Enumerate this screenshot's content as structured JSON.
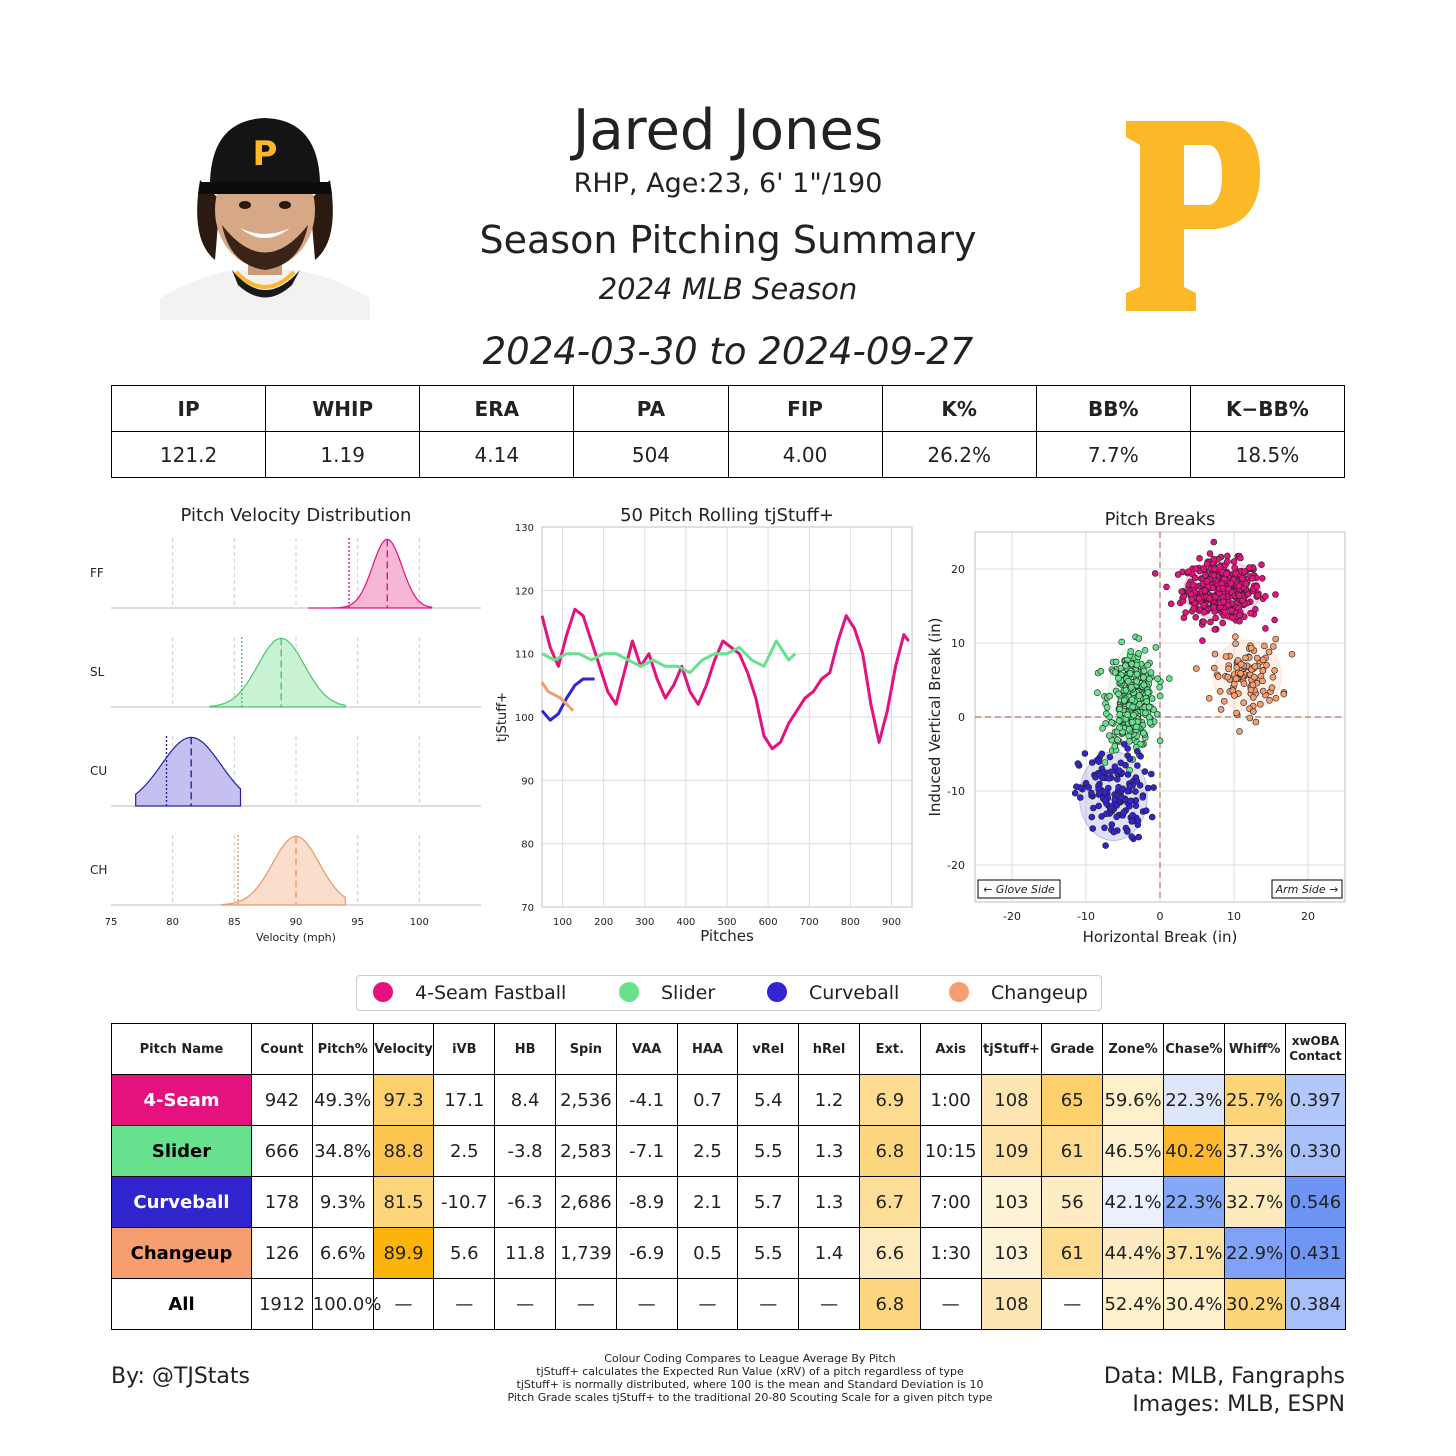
{
  "header": {
    "name": "Jared Jones",
    "info": "RHP, Age:23, 6' 1\"/190",
    "title": "Season Pitching Summary",
    "season": "2024 MLB Season",
    "date_range": "2024-03-30 to 2024-09-27",
    "team_color": "#FDB827"
  },
  "summary": {
    "headers": [
      "IP",
      "WHIP",
      "ERA",
      "PA",
      "FIP",
      "K%",
      "BB%",
      "K−BB%"
    ],
    "values": [
      "121.2",
      "1.19",
      "4.14",
      "504",
      "4.00",
      "26.2%",
      "7.7%",
      "18.5%"
    ]
  },
  "legend": [
    {
      "label": "4-Seam Fastball",
      "color": "#E4117F"
    },
    {
      "label": "Slider",
      "color": "#67E18D"
    },
    {
      "label": "Curveball",
      "color": "#3025CE"
    },
    {
      "label": "Changeup",
      "color": "#F79E70"
    }
  ],
  "chart_data": [
    {
      "type": "area",
      "title": "Pitch Velocity Distribution",
      "xlabel": "Velocity (mph)",
      "xlim": [
        75,
        105
      ],
      "xticks": [
        "75",
        "80",
        "85",
        "90",
        "95",
        "100"
      ],
      "series": [
        {
          "name": "FF",
          "color": "#E4117F",
          "fill": "#F7B6D6",
          "mean": 97.4,
          "league_mean": 94.3,
          "sd": 1.2,
          "min": 91,
          "max": 101,
          "y": [
            0,
            0.05,
            0.25,
            0.8,
            1.0,
            0.72,
            0.2,
            0
          ]
        },
        {
          "name": "SL",
          "color": "#4CC46F",
          "fill": "#C9F2D5",
          "mean": 88.8,
          "league_mean": 85.6,
          "sd": 1.9,
          "min": 83,
          "max": 94
        },
        {
          "name": "CU",
          "color": "#2420A8",
          "fill": "#C5C0F0",
          "mean": 81.5,
          "league_mean": 79.5,
          "sd": 2.4,
          "min": 77,
          "max": 85.5,
          "truncate": true
        },
        {
          "name": "CH",
          "color": "#E8986A",
          "fill": "#FADDCB",
          "mean": 90.0,
          "league_mean": 85.3,
          "sd": 1.9,
          "min": 84,
          "max": 94
        }
      ]
    },
    {
      "type": "line",
      "title": "50 Pitch Rolling tjStuff+",
      "xlabel": "Pitches",
      "ylabel": "tjStuff+",
      "xlim": [
        50,
        950
      ],
      "ylim": [
        70,
        130
      ],
      "xticks": [
        "100",
        "200",
        "300",
        "400",
        "500",
        "600",
        "700",
        "800",
        "900"
      ],
      "yticks": [
        "70",
        "80",
        "90",
        "100",
        "110",
        "120",
        "130"
      ],
      "series": [
        {
          "name": "4-Seam Fastball",
          "color": "#E4117F",
          "x": [
            50,
            70,
            90,
            110,
            130,
            150,
            170,
            190,
            210,
            230,
            250,
            270,
            290,
            310,
            330,
            350,
            370,
            390,
            410,
            430,
            450,
            470,
            490,
            510,
            530,
            550,
            570,
            590,
            610,
            630,
            650,
            670,
            690,
            710,
            730,
            750,
            770,
            790,
            810,
            830,
            850,
            870,
            890,
            910,
            930,
            942
          ],
          "y": [
            116,
            111,
            108,
            113,
            117,
            116,
            112,
            108,
            104,
            102,
            107,
            112,
            108,
            110,
            106,
            103,
            105,
            108,
            104,
            102,
            105,
            109,
            112,
            111,
            110,
            107,
            103,
            97,
            95,
            96,
            99,
            101,
            103,
            104,
            106,
            107,
            112,
            116,
            114,
            110,
            102,
            96,
            101,
            108,
            113,
            112
          ]
        },
        {
          "name": "Slider",
          "color": "#67E18D",
          "x": [
            50,
            80,
            110,
            140,
            170,
            200,
            230,
            260,
            290,
            320,
            350,
            380,
            410,
            440,
            470,
            500,
            530,
            560,
            590,
            620,
            650,
            666
          ],
          "y": [
            110,
            109,
            110,
            110,
            109,
            110,
            110,
            109,
            108,
            109,
            108,
            108,
            107,
            109,
            110,
            110,
            111,
            109,
            108,
            112,
            109,
            110
          ]
        },
        {
          "name": "Curveball",
          "color": "#3025CE",
          "x": [
            50,
            70,
            90,
            110,
            130,
            150,
            170,
            178
          ],
          "y": [
            101,
            99.5,
            100.5,
            103,
            105,
            106,
            106,
            106
          ]
        },
        {
          "name": "Changeup",
          "color": "#F79E70",
          "x": [
            50,
            65,
            80,
            95,
            110,
            126
          ],
          "y": [
            105.5,
            104,
            103.5,
            103,
            102,
            101
          ]
        }
      ]
    },
    {
      "type": "scatter",
      "title": "Pitch Breaks",
      "xlabel": "Horizontal Break (in)",
      "ylabel": "Induced Vertical Break (in)",
      "xlim": [
        -25,
        25
      ],
      "ylim": [
        -25,
        25
      ],
      "xticks": [
        "-20",
        "-10",
        "0",
        "10",
        "20"
      ],
      "yticks": [
        "-20",
        "-10",
        "0",
        "10",
        "20"
      ],
      "annotations": [
        "← Glove Side",
        "Arm Side →"
      ],
      "series": [
        {
          "name": "4-Seam Fastball",
          "color": "#E4117F",
          "center": [
            8.4,
            17.1
          ],
          "spread": [
            2.6,
            2.0
          ],
          "n": 420
        },
        {
          "name": "Slider",
          "color": "#67E18D",
          "center": [
            -3.8,
            2.5
          ],
          "spread": [
            1.6,
            3.4
          ],
          "n": 330
        },
        {
          "name": "Curveball",
          "color": "#3025CE",
          "center": [
            -6.3,
            -10.7
          ],
          "spread": [
            2.3,
            3.0
          ],
          "n": 150
        },
        {
          "name": "Changeup",
          "color": "#F79E70",
          "center": [
            11.8,
            5.6
          ],
          "spread": [
            2.3,
            2.4
          ],
          "n": 110
        }
      ]
    }
  ],
  "pitch_table": {
    "headers": [
      "Pitch Name",
      "Count",
      "Pitch%",
      "Velocity",
      "iVB",
      "HB",
      "Spin",
      "VAA",
      "HAA",
      "vRel",
      "hRel",
      "Ext.",
      "Axis",
      "tjStuff+",
      "Grade",
      "Zone%",
      "Chase%",
      "Whiff%",
      "xwOBA Contact"
    ],
    "rows": [
      {
        "cells": [
          "4-Seam",
          "942",
          "49.3%",
          "97.3",
          "17.1",
          "8.4",
          "2,536",
          "-4.1",
          "0.7",
          "5.4",
          "1.2",
          "6.9",
          "1:00",
          "108",
          "65",
          "59.6%",
          "22.3%",
          "25.7%",
          "0.397"
        ],
        "colors": [
          "#E4117F",
          "#fff",
          "#fff",
          "#FDD06B",
          "#fff",
          "#fff",
          "#fff",
          "#fff",
          "#fff",
          "#fff",
          "#fff",
          "#FDDB90",
          "#fff",
          "#FDE6B3",
          "#FDD06B",
          "#FEF0CB",
          "#DDE6FB",
          "#FDD477",
          "#B3C8FA"
        ],
        "text_color": "#fff"
      },
      {
        "cells": [
          "Slider",
          "666",
          "34.8%",
          "88.8",
          "2.5",
          "-3.8",
          "2,583",
          "-7.1",
          "2.5",
          "5.5",
          "1.3",
          "6.8",
          "10:15",
          "109",
          "61",
          "46.5%",
          "40.2%",
          "37.3%",
          "0.330"
        ],
        "colors": [
          "#67E18D",
          "#fff",
          "#fff",
          "#FDC650",
          "#fff",
          "#fff",
          "#fff",
          "#fff",
          "#fff",
          "#fff",
          "#fff",
          "#FDD77F",
          "#fff",
          "#FDE3A8",
          "#FDDB90",
          "#FEF1CF",
          "#FDBA2F",
          "#FEE3A6",
          "#A8C0FA"
        ],
        "text_color": "#000"
      },
      {
        "cells": [
          "Curveball",
          "178",
          "9.3%",
          "81.5",
          "-10.7",
          "-6.3",
          "2,686",
          "-8.9",
          "2.1",
          "5.7",
          "1.3",
          "6.7",
          "7:00",
          "103",
          "56",
          "42.1%",
          "22.3%",
          "32.7%",
          "0.546"
        ],
        "colors": [
          "#3025CE",
          "#fff",
          "#fff",
          "#FDD67C",
          "#fff",
          "#fff",
          "#fff",
          "#fff",
          "#fff",
          "#fff",
          "#fff",
          "#FDDE98",
          "#fff",
          "#FEF3D6",
          "#FEECC2",
          "#EAF0FC",
          "#86A8F8",
          "#FEEBBD",
          "#6E94F5"
        ],
        "text_color": "#fff"
      },
      {
        "cells": [
          "Changeup",
          "126",
          "6.6%",
          "89.9",
          "5.6",
          "11.8",
          "1,739",
          "-6.9",
          "0.5",
          "5.5",
          "1.4",
          "6.6",
          "1:30",
          "103",
          "61",
          "44.4%",
          "37.1%",
          "22.9%",
          "0.431"
        ],
        "colors": [
          "#F79E70",
          "#fff",
          "#fff",
          "#FDB40A",
          "#fff",
          "#fff",
          "#fff",
          "#fff",
          "#fff",
          "#fff",
          "#fff",
          "#FEECC0",
          "#fff",
          "#FEF3D6",
          "#FDDB90",
          "#FEEAC0",
          "#FEE2A4",
          "#7FA2F7",
          "#7096F5"
        ],
        "text_color": "#000"
      },
      {
        "cells": [
          "All",
          "1912",
          "100.0%",
          "—",
          "—",
          "—",
          "—",
          "—",
          "—",
          "—",
          "—",
          "6.8",
          "—",
          "108",
          "—",
          "52.4%",
          "30.4%",
          "30.2%",
          "0.384"
        ],
        "colors": [
          "#fff",
          "#fff",
          "#fff",
          "#fff",
          "#fff",
          "#fff",
          "#fff",
          "#fff",
          "#fff",
          "#fff",
          "#fff",
          "#FDD77F",
          "#fff",
          "#FDE6B3",
          "#fff",
          "#FEF0CB",
          "#FEF0CB",
          "#FDD477",
          "#A8C0FA"
        ],
        "text_color": "#000"
      }
    ]
  },
  "footer": {
    "author": "By: @TJStats",
    "notes": [
      "Colour Coding Compares to League Average By Pitch",
      "tjStuff+ calculates the Expected Run Value (xRV) of a pitch regardless of type",
      "tjStuff+ is normally distributed, where 100 is the mean and Standard Deviation is 10",
      "Pitch Grade scales tjStuff+ to the traditional 20-80 Scouting Scale for a given pitch type"
    ],
    "data_source": "Data: MLB, Fangraphs",
    "images_source": "Images: MLB, ESPN"
  }
}
